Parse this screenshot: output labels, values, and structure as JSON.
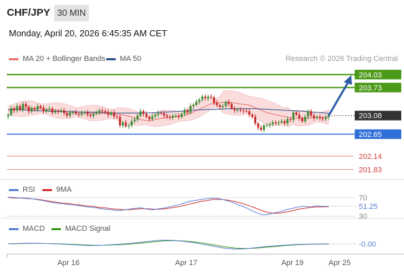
{
  "header": {
    "pair": "CHF/JPY",
    "timeframe": "30 MIN",
    "datetime": "Monday, April 20, 2026 6:45:35 AM CET"
  },
  "legend": {
    "ma20": "MA 20 + Bollinger Bands",
    "ma50": "MA 50",
    "copyright": "Research © 2026 Trading Central",
    "rsi": "RSI",
    "rsi_ma": "9MA",
    "macd": "MACD",
    "macd_signal": "MACD Signal"
  },
  "colors": {
    "up": "#3d8b35",
    "down": "#c62828",
    "resistance": "#4c9a1a",
    "support": "#2f6fd8",
    "pivot": "#333333",
    "extra": "#d63c3c",
    "ma20": "#e87070",
    "ma50": "#2a4f8f",
    "bb_fill": "#fadcdc",
    "arrow": "#2e5da8"
  },
  "chart_data": [
    {
      "type": "candlestick",
      "panel": "price",
      "x_ticks": [
        "Apr 16",
        "Apr 17",
        "Apr 19",
        "Apr 25"
      ],
      "ylim": [
        201.6,
        204.25
      ],
      "levels": [
        {
          "value": "204.03",
          "kind": "resistance"
        },
        {
          "value": "203.73",
          "kind": "resistance"
        },
        {
          "value": "203.08",
          "kind": "pivot"
        },
        {
          "value": "202.65",
          "kind": "support"
        },
        {
          "value": "202.14",
          "kind": "extra"
        },
        {
          "value": "201.83",
          "kind": "extra"
        }
      ],
      "close": [
        203.1,
        203.25,
        203.2,
        203.3,
        203.22,
        203.35,
        203.28,
        203.18,
        203.25,
        203.22,
        203.3,
        203.26,
        203.18,
        203.22,
        203.24,
        203.15,
        203.18,
        203.17,
        203.2,
        203.14,
        203.08,
        203.15,
        203.16,
        203.12,
        203.1,
        203.14,
        203.15,
        203.1,
        203.07,
        203.12,
        203.15,
        203.2,
        203.18,
        203.16,
        203.1,
        203.15,
        203.06,
        203.05,
        202.85,
        202.92,
        202.83,
        202.85,
        202.95,
        202.99,
        203.08,
        203.18,
        203.12,
        203.05,
        203.0,
        203.06,
        203.1,
        203.14,
        203.13,
        203.08,
        203.05,
        203.03,
        203.07,
        203.08,
        203.05,
        203.12,
        203.2,
        203.15,
        203.3,
        203.33,
        203.4,
        203.45,
        203.52,
        203.48,
        203.52,
        203.5,
        203.38,
        203.32,
        203.28,
        203.3,
        203.4,
        203.35,
        203.25,
        203.2,
        203.22,
        203.2,
        203.19,
        203.18,
        203.1,
        203.05,
        202.9,
        202.8,
        202.75,
        202.85,
        202.85,
        202.88,
        202.92,
        202.9,
        202.92,
        202.95,
        202.9,
        203.0,
        202.98,
        203.15,
        203.1,
        203.02,
        202.95,
        203.05,
        203.18,
        203.08,
        203.02,
        203.05,
        203.02,
        203.0,
        203.04,
        203.08
      ],
      "ma20": [
        203.2,
        203.21,
        203.22,
        203.23,
        203.24,
        203.25,
        203.25,
        203.24,
        203.24,
        203.23,
        203.22,
        203.21,
        203.2,
        203.19,
        203.18,
        203.17,
        203.16,
        203.16,
        203.15,
        203.15,
        203.14,
        203.14,
        203.14,
        203.13,
        203.13,
        203.12,
        203.12,
        203.11,
        203.1,
        203.08,
        203.06,
        203.03,
        203.0,
        202.98,
        202.97,
        202.97,
        202.98,
        203.0,
        203.02,
        203.03,
        203.04,
        203.05,
        203.06,
        203.07,
        203.1,
        203.14,
        203.18,
        203.22,
        203.27,
        203.31,
        203.35,
        203.37,
        203.38,
        203.39,
        203.39,
        203.38,
        203.37,
        203.35,
        203.34,
        203.33,
        203.3,
        203.26,
        203.22,
        203.18,
        203.14,
        203.12,
        203.1,
        203.08,
        203.06,
        203.04,
        203.03,
        203.02,
        203.02,
        203.02,
        203.02,
        203.03,
        203.04,
        203.04,
        203.04,
        203.05
      ],
      "ma50": [
        203.22,
        203.22,
        203.21,
        203.2,
        203.19,
        203.18,
        203.18,
        203.17,
        203.17,
        203.16,
        203.16,
        203.15,
        203.15,
        203.14,
        203.14,
        203.14,
        203.14,
        203.14,
        203.15,
        203.16,
        203.17,
        203.18,
        203.2,
        203.21,
        203.22,
        203.22,
        203.23,
        203.24,
        203.24,
        203.24,
        203.24,
        203.23,
        203.22,
        203.21,
        203.2,
        203.19,
        203.18,
        203.16,
        203.15,
        203.13
      ]
    },
    {
      "type": "line",
      "panel": "rsi",
      "ylim": [
        28,
        75
      ],
      "ref_lines": [
        70,
        30
      ],
      "ref_labels": [
        "70",
        "30"
      ],
      "value_label": "51.25",
      "rsi": [
        71,
        70,
        69,
        69,
        67,
        65,
        63,
        60,
        58,
        57,
        55,
        54,
        52,
        50,
        49,
        47,
        45,
        44,
        42,
        43,
        45,
        47,
        48,
        45,
        44,
        46,
        48,
        51,
        54,
        58,
        62,
        64,
        66,
        68,
        69,
        67,
        64,
        60,
        55,
        50,
        44,
        38,
        33,
        34,
        37,
        40,
        44,
        47,
        50,
        51,
        50,
        52,
        51,
        51.25
      ],
      "ma": [
        70,
        69,
        69,
        68,
        67,
        66,
        64,
        62,
        60,
        58,
        57,
        55,
        54,
        52,
        51,
        49,
        48,
        46,
        45,
        44,
        44,
        45,
        46,
        46,
        45,
        45,
        46,
        48,
        50,
        53,
        56,
        59,
        62,
        64,
        66,
        66,
        65,
        63,
        60,
        56,
        52,
        47,
        42,
        38,
        36,
        37,
        39,
        42,
        45,
        47,
        49,
        50,
        50,
        50.5
      ]
    },
    {
      "type": "line",
      "panel": "macd",
      "ylim": [
        -1,
        1
      ],
      "value_label": "-0.00",
      "macd": [
        0.02,
        0.05,
        0.07,
        0.06,
        0.03,
        -0.02,
        -0.08,
        -0.15,
        -0.2,
        -0.16,
        -0.1,
        -0.02,
        0.08,
        0.2,
        0.34,
        0.42,
        0.38,
        0.28,
        0.12,
        -0.08,
        -0.3,
        -0.5,
        -0.6,
        -0.55,
        -0.42,
        -0.3,
        -0.2,
        -0.12,
        -0.06,
        -0.03,
        -0.02,
        0.0
      ],
      "signal": [
        0.0,
        0.02,
        0.04,
        0.05,
        0.04,
        0.01,
        -0.04,
        -0.1,
        -0.15,
        -0.16,
        -0.13,
        -0.08,
        0.0,
        0.1,
        0.22,
        0.32,
        0.35,
        0.32,
        0.22,
        0.06,
        -0.14,
        -0.34,
        -0.48,
        -0.52,
        -0.48,
        -0.38,
        -0.28,
        -0.18,
        -0.1,
        -0.05,
        -0.03,
        -0.02
      ]
    }
  ]
}
